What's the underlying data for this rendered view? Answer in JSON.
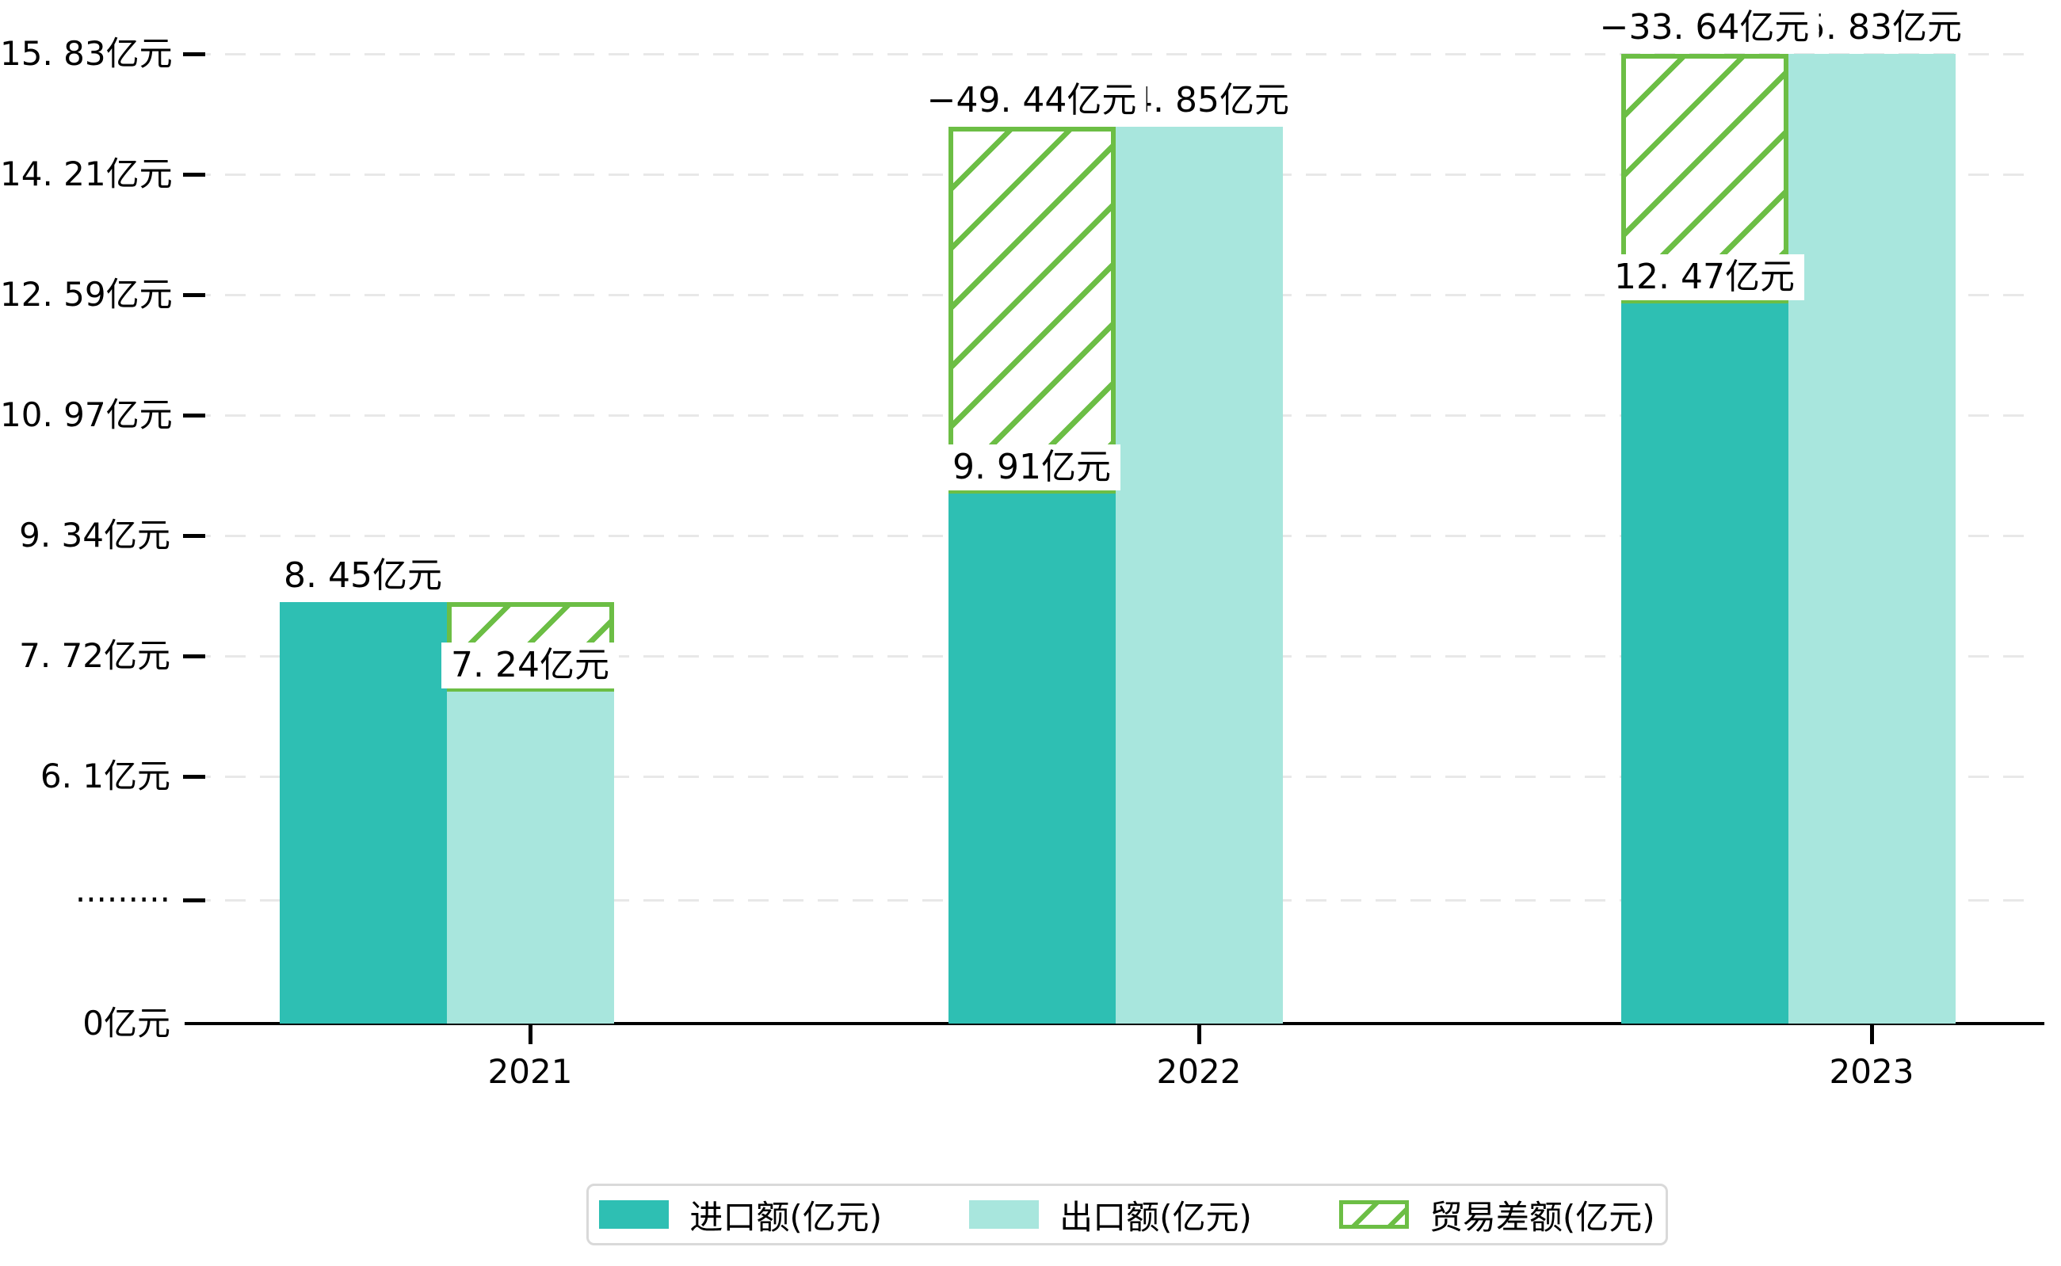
{
  "chart_data": {
    "type": "bar",
    "title": "",
    "categories": [
      "2021",
      "2022",
      "2023"
    ],
    "series": [
      {
        "name": "进口额(亿元)",
        "type": "bar",
        "color": "#2ebfb3",
        "values": [
          8.45,
          9.91,
          12.47
        ],
        "value_labels": [
          "8. 45亿元",
          "9. 91亿元",
          "12. 47亿元"
        ]
      },
      {
        "name": "出口额(亿元)",
        "type": "bar",
        "color": "#a8e6dd",
        "values": [
          7.24,
          14.85,
          15.83
        ],
        "value_labels": [
          "7. 24亿元",
          "14. 85亿元",
          "15. 83亿元"
        ]
      },
      {
        "name": "贸易差额(亿元)",
        "type": "gap-bar",
        "style": "hatched",
        "color": "#6cbe45",
        "values": [
          null,
          -49.44,
          -33.64
        ],
        "value_labels": [
          null,
          "−49. 44亿元",
          "−33. 64亿元"
        ],
        "gap_spans": [
          {
            "year": "2021",
            "from": 7.24,
            "to": 8.45,
            "over_slot": 1
          },
          {
            "year": "2022",
            "from": 9.91,
            "to": 14.85,
            "over_slot": 0
          },
          {
            "year": "2023",
            "from": 12.47,
            "to": 15.83,
            "over_slot": 0
          }
        ]
      }
    ],
    "y_axis": {
      "unit": "亿元",
      "ticks": [
        {
          "label": "15. 83亿元",
          "value": 15.83
        },
        {
          "label": "14. 21亿元",
          "value": 14.21
        },
        {
          "label": "12. 59亿元",
          "value": 12.59
        },
        {
          "label": "10. 97亿元",
          "value": 10.97
        },
        {
          "label": "9. 34亿元",
          "value": 9.34
        },
        {
          "label": "7. 72亿元",
          "value": 7.72
        },
        {
          "label": "6. 1亿元",
          "value": 6.1
        },
        {
          "label": "·········",
          "value": "break"
        },
        {
          "label": "0亿元",
          "value": 0
        }
      ],
      "axis_break_between": [
        0,
        6.1
      ],
      "grid": true
    },
    "x_axis": {
      "labels": [
        "2021",
        "2022",
        "2023"
      ]
    },
    "legend": {
      "position": "bottom",
      "items": [
        {
          "label": "进口额(亿元)",
          "swatch": "solid",
          "color": "#2ebfb3"
        },
        {
          "label": "出口额(亿元)",
          "swatch": "solid",
          "color": "#a8e6dd"
        },
        {
          "label": "贸易差额(亿元)",
          "swatch": "hatched",
          "color": "#6cbe45"
        }
      ]
    },
    "colors": {
      "import_bar": "#2ebfb3",
      "export_bar": "#a8e6dd",
      "balance_hatch": "#6cbe45",
      "gridline": "#e8e8e8",
      "axis": "#000000",
      "text": "#000000",
      "legend_border": "#d9d9d9"
    }
  }
}
